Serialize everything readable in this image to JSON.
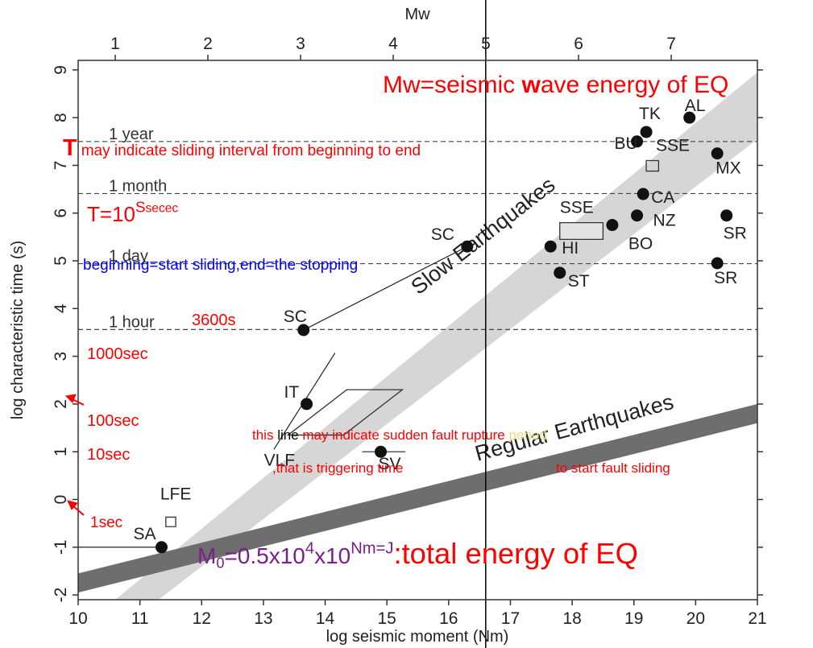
{
  "chart_data": {
    "type": "scatter",
    "xlabel": "log seismic moment (Nm)",
    "ylabel": "log characteristic time (s)",
    "top_axis_label": "Mw",
    "xlim": [
      10,
      21
    ],
    "xticks": [
      10,
      11,
      12,
      13,
      14,
      15,
      16,
      17,
      18,
      19,
      20,
      21
    ],
    "ylim": [
      -2.1,
      9.2
    ],
    "yticks": [
      -2,
      -1,
      0,
      1,
      2,
      3,
      4,
      5,
      6,
      7,
      8,
      9
    ],
    "top_xlim": [
      0.6,
      7.93
    ],
    "top_xticks": [
      1,
      2,
      3,
      4,
      5,
      6,
      7
    ],
    "points": [
      {
        "label": "SA",
        "x": 11.35,
        "y": -1.0
      },
      {
        "label": "IT",
        "x": 13.7,
        "y": 2.0
      },
      {
        "label": "SC",
        "x": 13.65,
        "y": 3.55
      },
      {
        "label": "SC",
        "x": 16.3,
        "y": 5.3
      },
      {
        "label": "SV",
        "x": 14.9,
        "y": 1.0
      },
      {
        "label": "HI",
        "x": 17.65,
        "y": 5.3
      },
      {
        "label": "ST",
        "x": 17.8,
        "y": 4.75
      },
      {
        "label": "BO",
        "x": 18.65,
        "y": 5.75
      },
      {
        "label": "NZ",
        "x": 19.05,
        "y": 5.95
      },
      {
        "label": "CA",
        "x": 19.15,
        "y": 6.4
      },
      {
        "label": "BU",
        "x": 19.05,
        "y": 7.5
      },
      {
        "label": "TK",
        "x": 19.2,
        "y": 7.7
      },
      {
        "label": "AL",
        "x": 19.9,
        "y": 8.0
      },
      {
        "label": "MX",
        "x": 20.35,
        "y": 7.25
      },
      {
        "label": "SR",
        "x": 20.5,
        "y": 5.95
      },
      {
        "label": "SR",
        "x": 20.35,
        "y": 4.95
      }
    ],
    "boxes": [
      {
        "label": "LFE",
        "x": [
          11.42,
          11.58,
          11.58,
          11.42
        ],
        "y": [
          -0.37,
          -0.37,
          -0.57,
          -0.57
        ]
      },
      {
        "label": "SSE",
        "x": [
          17.8,
          18.5,
          18.5,
          17.8
        ],
        "y": [
          5.8,
          5.8,
          5.45,
          5.45
        ]
      },
      {
        "label": "SSE",
        "x": [
          19.2,
          19.4,
          19.4,
          19.2
        ],
        "y": [
          7.1,
          7.1,
          6.88,
          6.88
        ]
      },
      {
        "label": "VLF",
        "x": [
          13.4,
          14.35,
          15.25,
          14.3
        ],
        "y": [
          1.35,
          2.3,
          2.3,
          1.35
        ]
      }
    ],
    "segments": [
      {
        "x": [
          13.65,
          16.3
        ],
        "y": [
          3.55,
          5.3
        ]
      },
      {
        "x": [
          13.17,
          14.16
        ],
        "y": [
          1.05,
          3.07
        ]
      },
      {
        "x": [
          10,
          11.35
        ],
        "y": [
          -1.0,
          -1.0
        ]
      },
      {
        "x": [
          14.6,
          15.3
        ],
        "y": [
          1.0,
          1.0
        ]
      }
    ],
    "vertical_line": {
      "x": 16.6
    },
    "reference_lines": [
      {
        "label": "1 year",
        "y": 7.5
      },
      {
        "label": "1 month",
        "y": 6.41
      },
      {
        "label": "1 day",
        "y": 4.94
      },
      {
        "label": "1 hour",
        "y": 3.56
      }
    ],
    "bands": [
      {
        "label": "Slow Earthquakes",
        "color": "#d6d6d6",
        "x": [
          10.6,
          21,
          21,
          11.3
        ],
        "y": [
          -2.1,
          8.95,
          7.55,
          -2.1
        ]
      },
      {
        "label": "Regular Earthquakes",
        "color": "#6e6e6e",
        "x": [
          10,
          21,
          21,
          10
        ],
        "y": [
          -1.55,
          2.0,
          1.6,
          -1.95
        ]
      }
    ],
    "annotations": [
      {
        "segments": [
          {
            "text": "Mw=seismic ",
            "color": "#ff0000"
          },
          {
            "text": "w",
            "color": "#ff0000",
            "weight": "bold"
          },
          {
            "text": "ave energy of EQ",
            "color": "#ff0000"
          }
        ]
      },
      {
        "segments": [
          {
            "text": "T",
            "color": "#ff0000",
            "weight": "bold"
          },
          {
            "text": " may indicate sliding interval from beginning to end",
            "color": "#ff0000"
          }
        ]
      },
      {
        "segments": [
          {
            "text": "T=10",
            "color": "#ff0000"
          },
          {
            "text": "S",
            "color": "#ff0000",
            "style": "sup"
          },
          {
            "text": "secec",
            "color": "#ff0000",
            "style": "sup-small"
          }
        ]
      },
      {
        "segments": [
          {
            "text": "beginning=start sliding,end=the stopping",
            "color": "#0000ff"
          }
        ]
      },
      {
        "segments": [
          {
            "text": "3600s",
            "color": "#ff0000"
          }
        ]
      },
      {
        "segments": [
          {
            "text": "1000sec",
            "color": "#ff0000"
          }
        ]
      },
      {
        "segments": [
          {
            "text": "100sec",
            "color": "#ff0000"
          }
        ]
      },
      {
        "segments": [
          {
            "text": "10sec",
            "color": "#ff0000"
          }
        ]
      },
      {
        "segments": [
          {
            "text": "1sec",
            "color": "#ff0000"
          }
        ]
      },
      {
        "segments": [
          {
            "text": "this ",
            "color": "#ff0000"
          },
          {
            "text": "line",
            "color": "#000000"
          },
          {
            "text": " may indicate sudden fault rupture ",
            "color": "#ff0000"
          },
          {
            "text": "period",
            "color": "#e6e08a"
          }
        ]
      },
      {
        "segments": [
          {
            "text": ",that is triggering time",
            "color": "#ff0000"
          }
        ]
      },
      {
        "segments": [
          {
            "text": "to start fault sliding",
            "color": "#ff0000"
          }
        ]
      },
      {
        "segments": [
          {
            "text": "M",
            "color": "#7a1f8a"
          },
          {
            "text": "0",
            "color": "#7a1f8a",
            "style": "sub"
          },
          {
            "text": "=0.5x10",
            "color": "#7a1f8a"
          },
          {
            "text": "4",
            "color": "#7a1f8a",
            "style": "sup"
          },
          {
            "text": "x10",
            "color": "#7a1f8a"
          },
          {
            "text": "Nm=J",
            "color": "#7a1f8a",
            "style": "sup"
          },
          {
            "text": ":total energy of EQ",
            "color": "#ff0000",
            "style": "big"
          }
        ]
      }
    ]
  }
}
